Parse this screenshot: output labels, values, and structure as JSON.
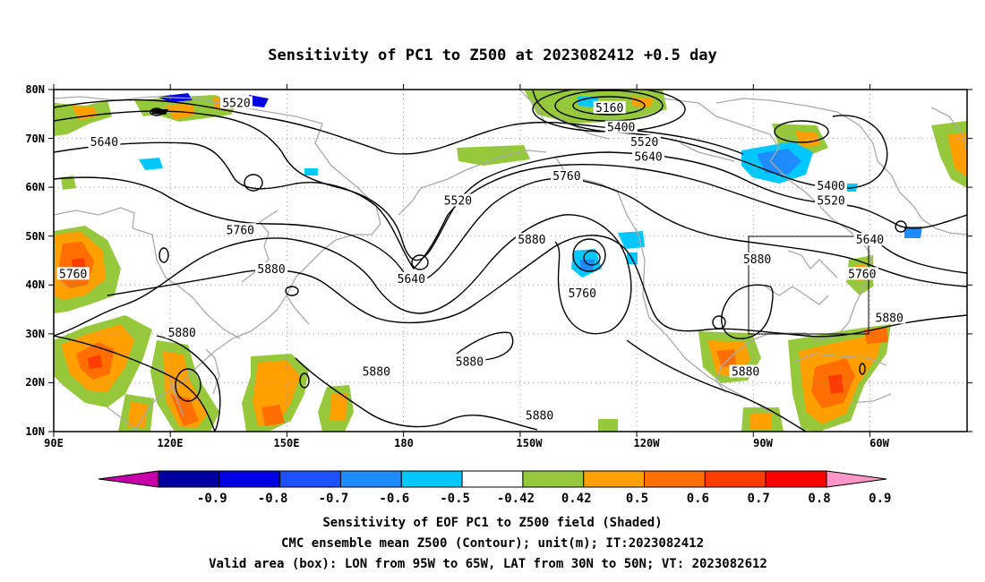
{
  "title": "Sensitivity of PC1 to Z500 at 2023082412 +0.5 day",
  "lat_ticks": [
    "80N",
    "70N",
    "60N",
    "50N",
    "40N",
    "30N",
    "20N",
    "10N"
  ],
  "lon_ticks": [
    "90E",
    "120E",
    "150E",
    "180",
    "150W",
    "120W",
    "90W",
    "60W"
  ],
  "map_extent": {
    "lon_min": 90,
    "lon_max": 325,
    "lat_min": 10,
    "lat_max": 80
  },
  "valid_box": {
    "lon_west": "95W",
    "lon_east": "65W",
    "lat_south": "30N",
    "lat_north": "50N"
  },
  "contour_labels": [
    {
      "text": "5520",
      "lon": 137,
      "lat": 77
    },
    {
      "text": "5640",
      "lon": 103,
      "lat": 69
    },
    {
      "text": "5760",
      "lon": 138,
      "lat": 51
    },
    {
      "text": "5880",
      "lon": 146,
      "lat": 43
    },
    {
      "text": "5760",
      "lon": 95,
      "lat": 42
    },
    {
      "text": "5880",
      "lon": 123,
      "lat": 30
    },
    {
      "text": "5880",
      "lon": 173,
      "lat": 22
    },
    {
      "text": "5640",
      "lon": 182,
      "lat": 41
    },
    {
      "text": "5520",
      "lon": 194,
      "lat": 57
    },
    {
      "text": "5160",
      "lon": 233,
      "lat": 76
    },
    {
      "text": "5400",
      "lon": 236,
      "lat": 72
    },
    {
      "text": "5520",
      "lon": 242,
      "lat": 69
    },
    {
      "text": "5640",
      "lon": 243,
      "lat": 66
    },
    {
      "text": "5760",
      "lon": 222,
      "lat": 62
    },
    {
      "text": "5880",
      "lon": 213,
      "lat": 49
    },
    {
      "text": "5760",
      "lon": 226,
      "lat": 38
    },
    {
      "text": "5880",
      "lon": 197,
      "lat": 24
    },
    {
      "text": "5880",
      "lon": 215,
      "lat": 13
    },
    {
      "text": "5880",
      "lon": 271,
      "lat": 45
    },
    {
      "text": "5880",
      "lon": 268,
      "lat": 22
    },
    {
      "text": "5400",
      "lon": 290,
      "lat": 60
    },
    {
      "text": "5520",
      "lon": 290,
      "lat": 57
    },
    {
      "text": "5640",
      "lon": 300,
      "lat": 49
    },
    {
      "text": "5760",
      "lon": 298,
      "lat": 42
    },
    {
      "text": "5880",
      "lon": 305,
      "lat": 33
    }
  ],
  "colorbar": {
    "colors": [
      "#c800aa",
      "#0000a0",
      "#0000e6",
      "#1e50ff",
      "#1e8cff",
      "#00c8ff",
      "#ffffff",
      "#96c83c",
      "#ffa000",
      "#ff6e00",
      "#ff3c00",
      "#ff0000",
      "#ff96c8"
    ],
    "labels": [
      "-0.9",
      "-0.8",
      "-0.7",
      "-0.6",
      "-0.5",
      "-0.42",
      "0.42",
      "0.5",
      "0.6",
      "0.7",
      "0.8",
      "0.9"
    ]
  },
  "shading_colors": {
    "green": "#96c83c",
    "orange": "#ffa000",
    "darkorange": "#ff6e00",
    "red": "#ff3c00",
    "cyan": "#00c8ff",
    "blue": "#1e8cff",
    "gray_coast": "#a9a9a9"
  },
  "captions": [
    "Sensitivity of EOF PC1 to Z500 field (Shaded)",
    "CMC ensemble mean Z500 (Contour); unit(m); IT:2023082412",
    "Valid area (box): LON from 95W to 65W, LAT from 30N to 50N; VT: 2023082612"
  ]
}
